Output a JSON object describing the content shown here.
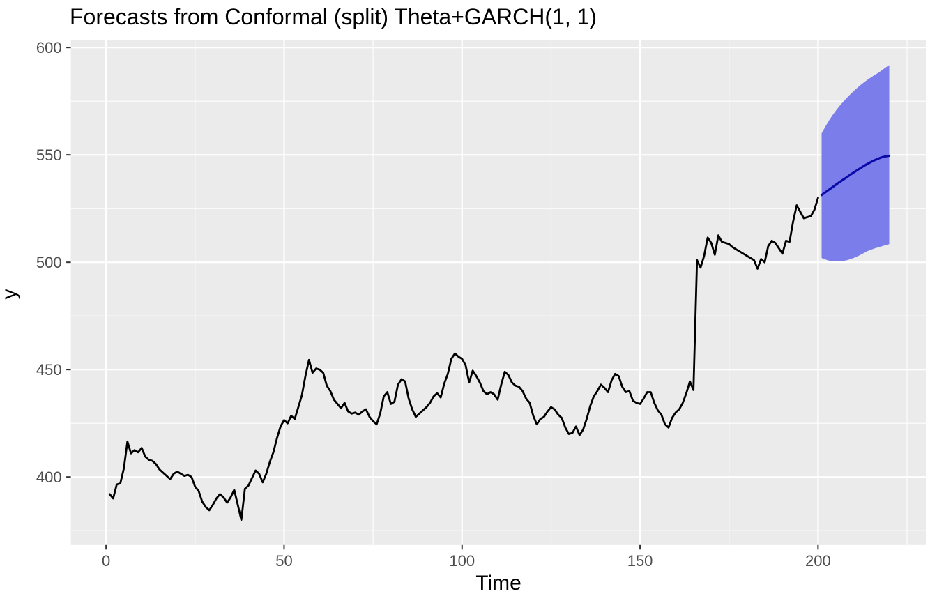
{
  "title": "Forecasts from Conformal (split) Theta+GARCH(1, 1)",
  "axes": {
    "x_label": "Time",
    "y_label": "y"
  },
  "chart_data": {
    "type": "line",
    "title": "Forecasts from Conformal (split) Theta+GARCH(1, 1)",
    "xlabel": "Time",
    "ylabel": "y",
    "x_domain": [
      -9.9,
      230.3
    ],
    "y_domain": [
      368.3,
      603.3
    ],
    "x_ticks": [
      0,
      50,
      100,
      150,
      200
    ],
    "x_minor_ticks": [
      25,
      75,
      125,
      175,
      225
    ],
    "y_ticks": [
      400,
      450,
      500,
      550,
      600
    ],
    "y_minor_ticks": [
      375,
      425,
      475,
      525,
      575
    ],
    "grid": true,
    "legend": false,
    "colors": {
      "panel_bg": "#EBEBEB",
      "grid": "#FFFFFF",
      "observed_line": "#000000",
      "forecast_mean_line": "#0A0AA8",
      "interval_fill": "#7B7EEA",
      "axis_text": "#4D4D4D",
      "tick_mark": "#333333",
      "title_text": "#000000"
    },
    "series": [
      {
        "name": "observed",
        "type": "line",
        "t_start": 1,
        "values": [
          392.0,
          390.0,
          396.5,
          397.0,
          404.0,
          416.5,
          411.0,
          412.5,
          411.5,
          413.5,
          409.5,
          408.0,
          407.5,
          406.0,
          403.5,
          402.0,
          400.5,
          399.0,
          401.5,
          402.5,
          401.5,
          400.5,
          401.0,
          400.0,
          395.5,
          393.5,
          388.5,
          386.0,
          384.5,
          387.0,
          390.0,
          392.0,
          390.5,
          388.0,
          390.5,
          394.0,
          387.0,
          380.0,
          394.5,
          396.0,
          399.5,
          403.0,
          401.5,
          397.5,
          401.5,
          407.0,
          411.5,
          418.0,
          423.5,
          426.5,
          425.0,
          428.5,
          427.0,
          432.5,
          438.0,
          447.0,
          454.5,
          448.5,
          450.5,
          450.0,
          448.5,
          442.5,
          440.0,
          436.0,
          434.0,
          432.0,
          434.5,
          430.5,
          429.5,
          430.0,
          429.0,
          430.5,
          431.5,
          428.0,
          426.0,
          424.5,
          429.5,
          437.5,
          439.5,
          434.0,
          435.0,
          443.0,
          445.5,
          444.5,
          436.5,
          431.5,
          428.0,
          429.5,
          431.0,
          432.5,
          434.5,
          437.5,
          439.0,
          437.0,
          443.5,
          448.0,
          455.0,
          457.5,
          456.0,
          455.0,
          452.0,
          444.0,
          449.5,
          447.0,
          444.0,
          440.0,
          438.5,
          439.5,
          438.5,
          436.0,
          443.0,
          449.0,
          447.5,
          444.0,
          442.5,
          442.0,
          440.0,
          436.5,
          434.5,
          428.5,
          424.5,
          427.0,
          428.0,
          430.5,
          432.5,
          431.5,
          429.0,
          427.5,
          423.0,
          420.0,
          420.5,
          423.5,
          419.5,
          422.0,
          427.0,
          433.0,
          437.5,
          440.0,
          443.0,
          441.5,
          439.5,
          445.0,
          448.0,
          447.0,
          442.0,
          439.5,
          440.0,
          435.5,
          434.5,
          434.0,
          436.5,
          439.5,
          439.5,
          434.5,
          431.0,
          429.0,
          424.5,
          423.0,
          427.5,
          430.0,
          431.5,
          434.5,
          439.0,
          444.5,
          440.5,
          501.0,
          497.5,
          503.0,
          511.5,
          509.0,
          503.5,
          512.5,
          509.5,
          509.0,
          508.5,
          507.0,
          506.0,
          505.0,
          504.0,
          503.0,
          502.0,
          501.0,
          497.0,
          501.5,
          500.0,
          507.5,
          510.0,
          509.0,
          506.5,
          504.0,
          510.0,
          509.5,
          519.0,
          526.5,
          523.5,
          520.5,
          521.0,
          521.5,
          524.5,
          530.0
        ]
      },
      {
        "name": "forecast_mean",
        "type": "line",
        "t_start": 201,
        "values": [
          531.3,
          532.5,
          533.7,
          534.9,
          536.1,
          537.3,
          538.4,
          539.5,
          540.7,
          541.8,
          542.9,
          543.9,
          545.0,
          545.9,
          546.8,
          547.6,
          548.3,
          548.9,
          549.3,
          549.6
        ]
      },
      {
        "name": "prediction_interval",
        "type": "band",
        "t_start": 201,
        "upper": [
          560.0,
          563.0,
          565.8,
          568.3,
          570.6,
          572.7,
          574.6,
          576.4,
          578.1,
          579.7,
          581.2,
          582.6,
          583.9,
          585.1,
          586.2,
          587.3,
          588.3,
          589.5,
          590.7,
          591.8
        ],
        "lower": [
          502.0,
          501.3,
          500.8,
          500.5,
          500.4,
          500.4,
          500.6,
          500.9,
          501.4,
          502.0,
          502.7,
          503.5,
          504.4,
          505.3,
          505.9,
          506.5,
          507.0,
          507.5,
          508.0,
          508.4
        ]
      }
    ]
  }
}
